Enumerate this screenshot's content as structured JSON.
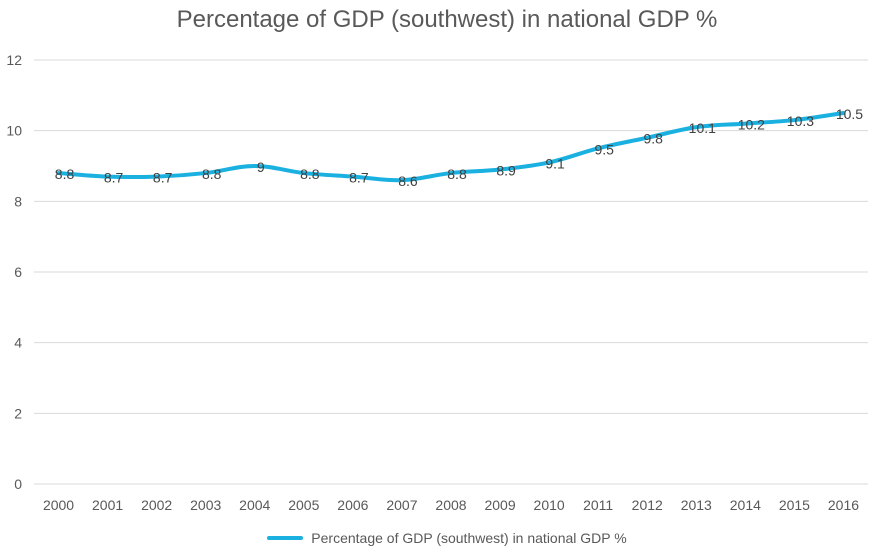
{
  "chart_data": {
    "type": "line",
    "title": "Percentage of GDP (southwest) in national GDP %",
    "xlabel": "",
    "ylabel": "",
    "categories": [
      "2000",
      "2001",
      "2002",
      "2003",
      "2004",
      "2005",
      "2006",
      "2007",
      "2008",
      "2009",
      "2010",
      "2011",
      "2012",
      "2013",
      "2014",
      "2015",
      "2016"
    ],
    "series": [
      {
        "name": "Percentage of GDP (southwest) in national GDP %",
        "values": [
          8.8,
          8.7,
          8.7,
          8.8,
          9,
          8.8,
          8.7,
          8.6,
          8.8,
          8.9,
          9.1,
          9.5,
          9.8,
          10.1,
          10.2,
          10.3,
          10.5
        ],
        "labels": [
          "8.8",
          "8.7",
          "8.7",
          "8.8",
          "9",
          "8.8",
          "8.7",
          "8.6",
          "8.8",
          "8.9",
          "9.1",
          "9.5",
          "9.8",
          "10.1",
          "10.2",
          "10.3",
          "10.5"
        ],
        "color": "#1ab0e0"
      }
    ],
    "ylim": [
      0,
      12
    ],
    "yticks": [
      "0",
      "2",
      "4",
      "6",
      "8",
      "10",
      "12"
    ],
    "grid": true,
    "legend_position": "bottom"
  }
}
